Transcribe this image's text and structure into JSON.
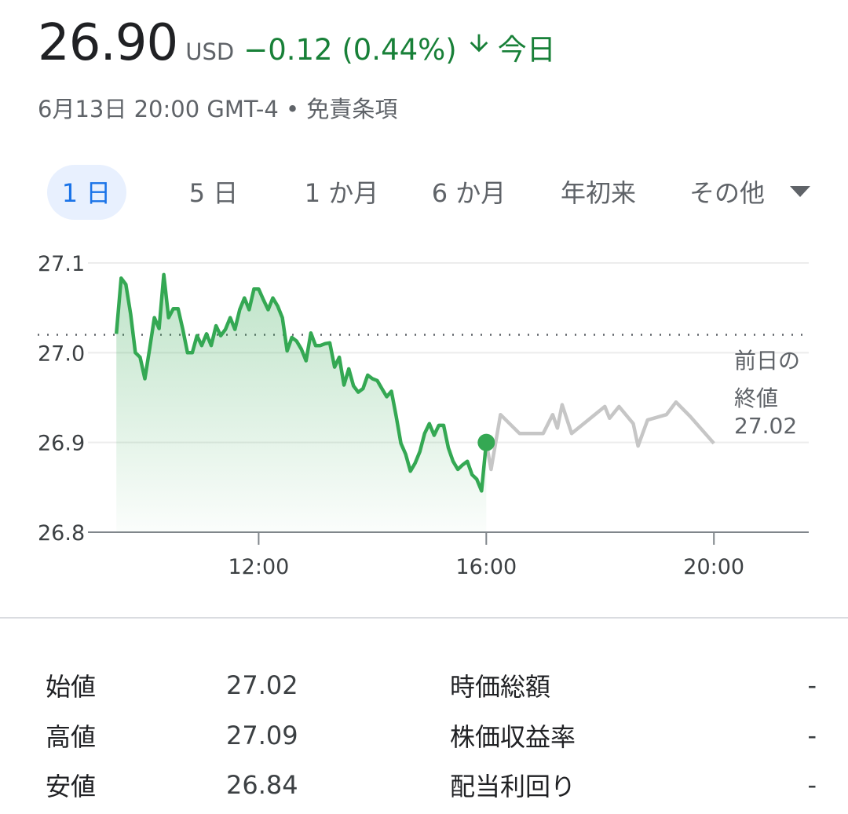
{
  "header": {
    "price": "26.90",
    "currency": "USD",
    "change": "−0.12 (0.44%)",
    "period": "今日",
    "subtitle": "6月13日 20:00 GMT-4 • 免責条項"
  },
  "tabs": [
    "1 日",
    "5 日",
    "1 か月",
    "6 か月",
    "年初来",
    "その他"
  ],
  "chart_data": {
    "type": "line",
    "xlim": [
      540,
      1300
    ],
    "xticks": [
      {
        "value": 720,
        "label": "12:00"
      },
      {
        "value": 960,
        "label": "16:00"
      },
      {
        "value": 1200,
        "label": "20:00"
      }
    ],
    "ylim": [
      26.8,
      27.1
    ],
    "yticks": [
      26.8,
      26.9,
      {
        "value": 27,
        "label": "27.0"
      },
      27.1
    ],
    "grid": true,
    "previous_close": 27.02,
    "previous_close_label": "前日の終値",
    "previous_close_value_label": "27.02",
    "series": [
      {
        "color": "#34a853",
        "area": true,
        "marker": "last",
        "x": [
          570,
          575,
          580,
          585,
          590,
          595,
          600,
          605,
          610,
          615,
          620,
          625,
          630,
          635,
          640,
          645,
          650,
          655,
          660,
          665,
          670,
          675,
          680,
          685,
          690,
          695,
          700,
          705,
          710,
          715,
          720,
          725,
          730,
          735,
          740,
          745,
          750,
          755,
          760,
          765,
          770,
          775,
          780,
          785,
          790,
          795,
          800,
          805,
          810,
          815,
          820,
          825,
          830,
          835,
          840,
          845,
          850,
          855,
          860,
          865,
          870,
          875,
          880,
          885,
          890,
          895,
          900,
          905,
          910,
          915,
          920,
          925,
          930,
          935,
          940,
          945,
          950,
          955,
          960
        ],
        "values": [
          27.021,
          27.083,
          27.076,
          27.043,
          27.0,
          26.995,
          26.971,
          27.004,
          27.039,
          27.027,
          27.087,
          27.039,
          27.049,
          27.049,
          27.026,
          27.0,
          27.0,
          27.019,
          27.008,
          27.021,
          27.008,
          27.03,
          27.019,
          27.026,
          27.039,
          27.026,
          27.048,
          27.061,
          27.048,
          27.071,
          27.071,
          27.059,
          27.048,
          27.061,
          27.052,
          27.039,
          27.002,
          27.017,
          27.013,
          27.004,
          26.991,
          27.022,
          27.008,
          27.008,
          27.01,
          27.011,
          26.984,
          26.995,
          26.964,
          26.982,
          26.963,
          26.956,
          26.96,
          26.975,
          26.971,
          26.969,
          26.96,
          26.951,
          26.957,
          26.929,
          26.899,
          26.887,
          26.868,
          26.877,
          26.89,
          26.91,
          26.921,
          26.908,
          26.919,
          26.919,
          26.894,
          26.879,
          26.87,
          26.875,
          26.879,
          26.864,
          26.859,
          26.846,
          26.9
        ]
      },
      {
        "color": "#c6c6c6",
        "x": [
          960,
          965,
          975,
          995,
          1020,
          1030,
          1035,
          1040,
          1050,
          1085,
          1090,
          1100,
          1115,
          1120,
          1130,
          1150,
          1160,
          1175,
          1200
        ],
        "values": [
          26.9,
          26.87,
          26.931,
          26.91,
          26.91,
          26.931,
          26.916,
          26.942,
          26.91,
          26.94,
          26.927,
          26.94,
          26.921,
          26.896,
          26.925,
          26.931,
          26.945,
          26.929,
          26.899
        ]
      }
    ]
  },
  "stats": {
    "left": [
      [
        "始値",
        "27.02"
      ],
      [
        "高値",
        "27.09"
      ],
      [
        "安値",
        "26.84"
      ]
    ],
    "right": [
      [
        "時価総額",
        "-"
      ],
      [
        "株価収益率",
        "-"
      ],
      [
        "配当利回り",
        "-"
      ]
    ]
  }
}
